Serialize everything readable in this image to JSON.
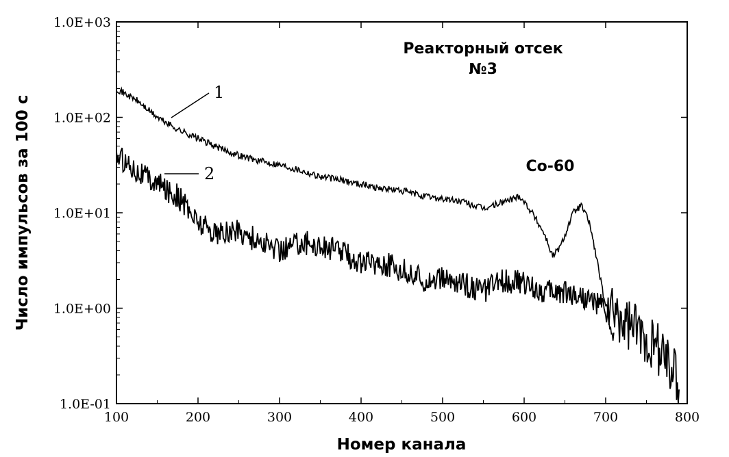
{
  "chart_data": {
    "type": "line",
    "title": "",
    "xlabel": "Номер канала",
    "ylabel": "Число импульсов за 100 с",
    "xlim": [
      100,
      800
    ],
    "ylim": [
      0.1,
      1000
    ],
    "yscale": "log",
    "grid": false,
    "x_ticks": [
      "100",
      "200",
      "300",
      "400",
      "500",
      "600",
      "700",
      "800"
    ],
    "y_ticks": [
      "1.0E+03",
      "1.0E+02",
      "1.0E+01",
      "1.0E+00",
      "1.0E-01"
    ],
    "annotations": {
      "title_line1": "Реакторный отсек",
      "title_line2": "№3",
      "isotope": "Co-60"
    },
    "series": [
      {
        "name": "1",
        "x": [
          100,
          125,
          150,
          175,
          200,
          225,
          250,
          275,
          300,
          325,
          350,
          375,
          400,
          425,
          450,
          475,
          500,
          525,
          550,
          575,
          595,
          610,
          625,
          635,
          645,
          660,
          670,
          680,
          690,
          700,
          710
        ],
        "values": [
          200,
          150,
          100,
          75,
          60,
          48,
          40,
          35,
          32,
          28,
          24,
          22,
          20,
          18,
          17,
          15,
          14,
          13,
          11,
          13,
          15,
          10,
          6,
          3.5,
          4.5,
          10,
          12,
          8,
          3,
          1,
          0.5
        ]
      },
      {
        "name": "2",
        "x": [
          100,
          110,
          125,
          150,
          175,
          200,
          225,
          250,
          275,
          300,
          325,
          350,
          375,
          400,
          425,
          450,
          475,
          500,
          525,
          550,
          575,
          600,
          625,
          650,
          675,
          700,
          725,
          750,
          775,
          790
        ],
        "values": [
          40,
          35,
          28,
          20,
          15,
          8,
          6,
          6.5,
          5,
          4,
          5,
          4.5,
          4,
          3,
          3,
          2.5,
          2,
          2,
          1.8,
          1.5,
          2,
          1.8,
          1.5,
          1.5,
          1.3,
          1,
          0.7,
          0.5,
          0.3,
          0.15
        ]
      }
    ]
  }
}
